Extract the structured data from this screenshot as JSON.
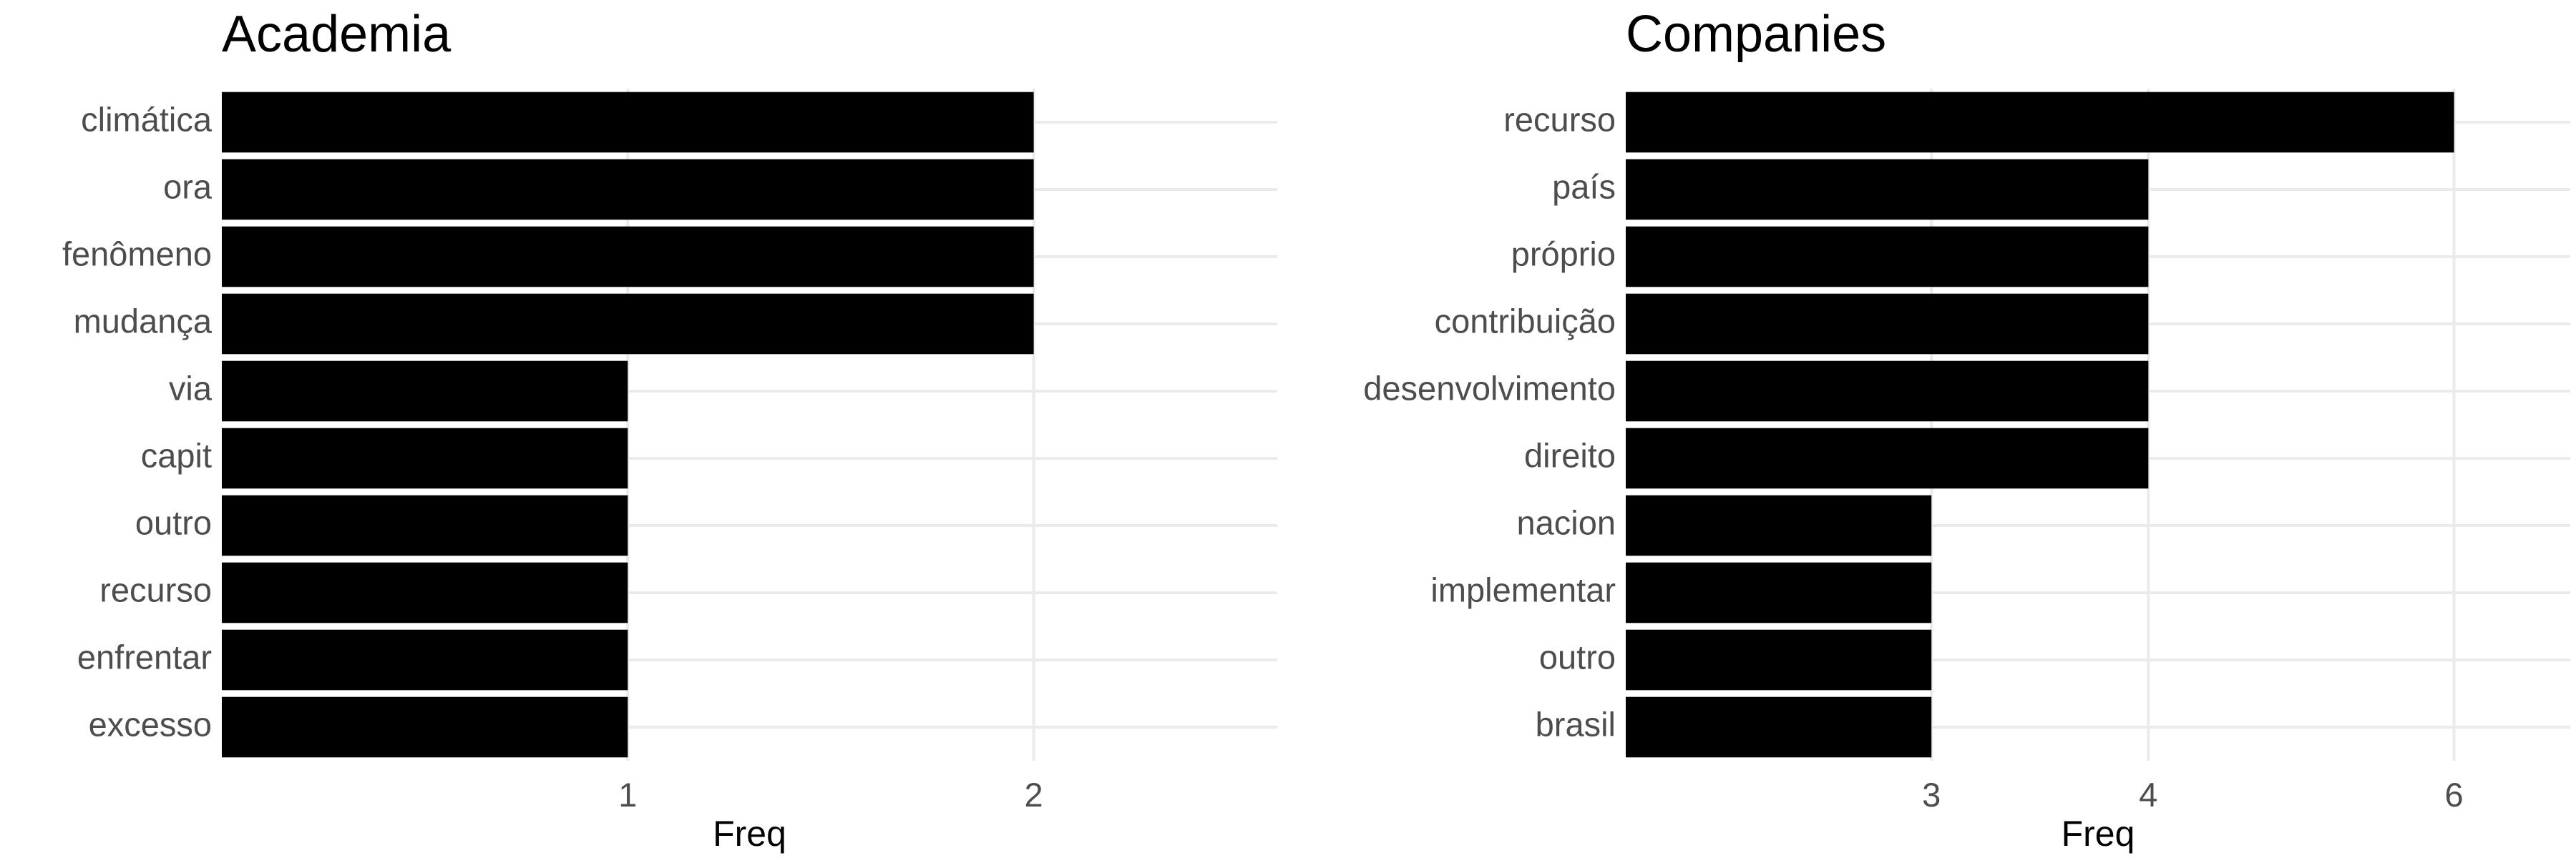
{
  "chart_data": [
    {
      "type": "bar",
      "orientation": "horizontal",
      "title": "Academia",
      "xlabel": "Freq",
      "ylabel": "",
      "categories": [
        "climática",
        "ora",
        "fenômeno",
        "mudança",
        "via",
        "capit",
        "outro",
        "recurso",
        "enfrentar",
        "excesso"
      ],
      "values": [
        2,
        2,
        2,
        2,
        1,
        1,
        1,
        1,
        1,
        1
      ],
      "x_ticks": [
        1,
        2
      ],
      "xlim": [
        0,
        2.6
      ],
      "grid": true,
      "bar_color": "#000000"
    },
    {
      "type": "bar",
      "orientation": "horizontal",
      "title": "Companies",
      "xlabel": "Freq",
      "ylabel": "",
      "categories": [
        "recurso",
        "país",
        "próprio",
        "contribuição",
        "desenvolvimento",
        "direito",
        "nacion",
        "implementar",
        "outro",
        "brasil"
      ],
      "values": [
        6,
        4,
        4,
        4,
        4,
        4,
        3,
        3,
        3,
        3
      ],
      "x_ticks": [
        3,
        4,
        6
      ],
      "x_scale": "log",
      "xlim": [
        2,
        7
      ],
      "grid": true,
      "bar_color": "#000000"
    }
  ]
}
